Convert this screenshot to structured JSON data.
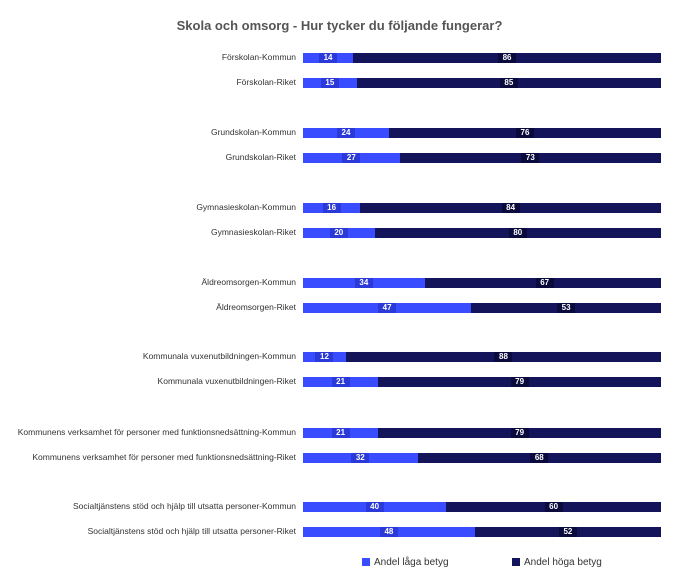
{
  "chart_data": {
    "type": "bar",
    "orientation": "horizontal",
    "stacked": true,
    "title": "Skola och omsorg - Hur tycker du följande fungerar?",
    "xlim": [
      0,
      100
    ],
    "categories": [
      "Förskolan-Kommun",
      "Förskolan-Riket",
      "Grundskolan-Kommun",
      "Grundskolan-Riket",
      "Gymnasieskolan-Kommun",
      "Gymnasieskolan-Riket",
      "Äldreomsorgen-Kommun",
      "Äldreomsorgen-Riket",
      "Kommunala vuxenutbildningen-Kommun",
      "Kommunala vuxenutbildningen-Riket",
      "Kommunens verksamhet för personer med funktionsnedsättning-Kommun",
      "Kommunens verksamhet för personer med funktionsnedsättning-Riket",
      "Socialtjänstens stöd och hjälp till utsatta personer-Kommun",
      "Socialtjänstens stöd och hjälp till utsatta personer-Riket"
    ],
    "series": [
      {
        "name": "Andel låga betyg",
        "color": "#3a4cff",
        "values": [
          14,
          15,
          24,
          27,
          16,
          20,
          34,
          47,
          12,
          21,
          21,
          32,
          40,
          48
        ]
      },
      {
        "name": "Andel höga betyg",
        "color": "#14145a",
        "values": [
          86,
          85,
          76,
          73,
          84,
          80,
          67,
          53,
          88,
          79,
          79,
          68,
          60,
          52
        ]
      }
    ],
    "legend": "bottom-right"
  }
}
